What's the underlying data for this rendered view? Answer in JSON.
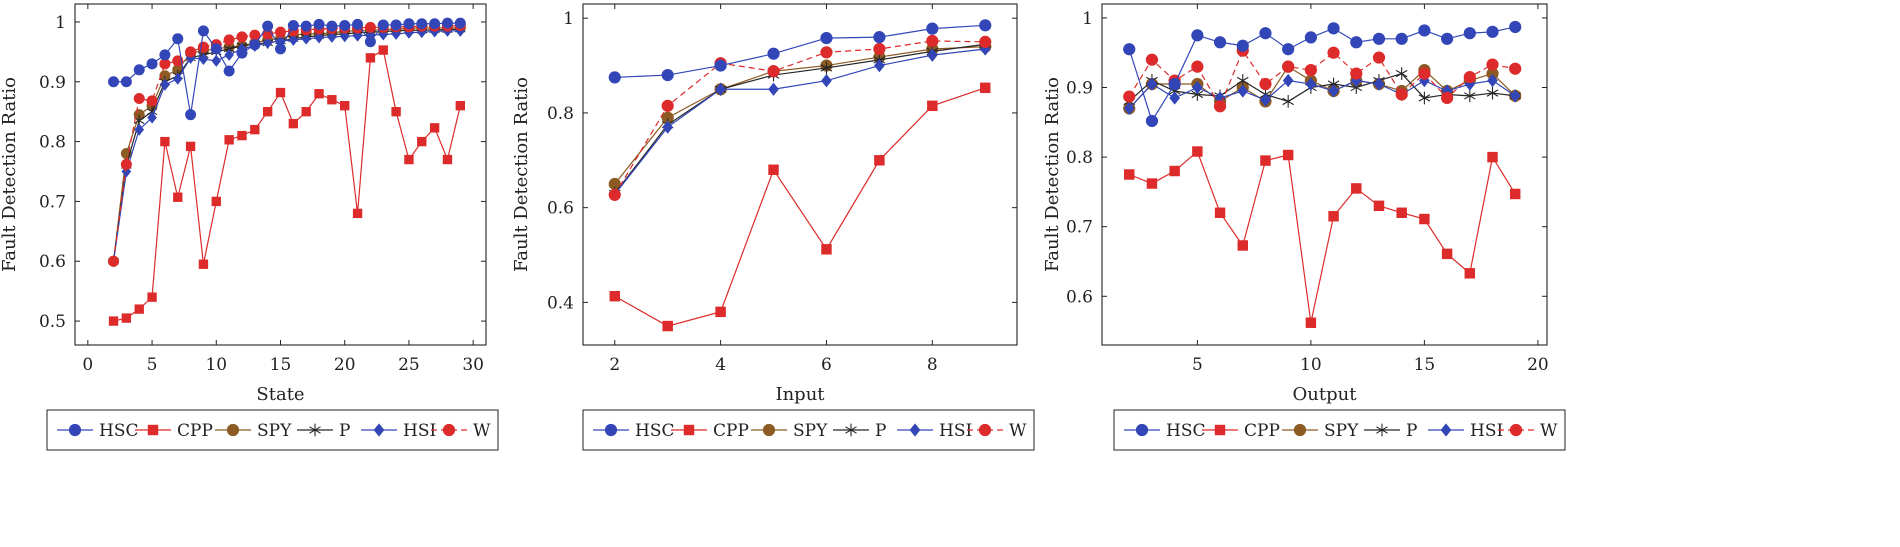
{
  "chart_data": [
    {
      "type": "line",
      "xlabel": "State",
      "ylabel": "Fault Detection Ratio",
      "xlim": [
        -1,
        31
      ],
      "ylim": [
        0.46,
        1.03
      ],
      "xticks": [
        0,
        5,
        10,
        15,
        20,
        25,
        30
      ],
      "yticks": [
        0.5,
        0.6,
        0.7,
        0.8,
        0.9,
        1
      ],
      "ytick_labels": [
        "0.5",
        "0.6",
        "0.7",
        "0.8",
        "0.9",
        "1"
      ],
      "grid": false,
      "legend": "bottom",
      "x": [
        2,
        3,
        4,
        5,
        6,
        7,
        8,
        9,
        10,
        11,
        12,
        13,
        14,
        15,
        16,
        17,
        18,
        19,
        20,
        21,
        22,
        23,
        24,
        25,
        26,
        27,
        28,
        29
      ],
      "series": [
        {
          "name": "HSC",
          "values": [
            0.9,
            0.9,
            0.92,
            0.93,
            0.945,
            0.972,
            0.845,
            0.985,
            0.955,
            0.918,
            0.948,
            0.962,
            0.993,
            0.955,
            0.994,
            0.993,
            0.996,
            0.993,
            0.994,
            0.996,
            0.967,
            0.995,
            0.995,
            0.997,
            0.997,
            0.997,
            0.998,
            0.998
          ]
        },
        {
          "name": "CPP",
          "values": [
            0.5,
            0.505,
            0.52,
            0.54,
            0.8,
            0.707,
            0.792,
            0.595,
            0.7,
            0.803,
            0.81,
            0.82,
            0.85,
            0.882,
            0.83,
            0.85,
            0.88,
            0.87,
            0.86,
            0.68,
            0.94,
            0.953,
            0.85,
            0.77,
            0.8,
            0.823,
            0.77,
            0.86
          ]
        },
        {
          "name": "SPY",
          "values": [
            0.6,
            0.78,
            0.845,
            0.86,
            0.91,
            0.92,
            0.948,
            0.952,
            0.955,
            0.958,
            0.96,
            0.965,
            0.97,
            0.972,
            0.978,
            0.98,
            0.98,
            0.982,
            0.984,
            0.986,
            0.986,
            0.987,
            0.988,
            0.989,
            0.99,
            0.99,
            0.99,
            0.99
          ]
        },
        {
          "name": "P",
          "values": [
            0.6,
            0.76,
            0.835,
            0.85,
            0.9,
            0.91,
            0.94,
            0.945,
            0.95,
            0.955,
            0.96,
            0.963,
            0.965,
            0.968,
            0.972,
            0.975,
            0.977,
            0.979,
            0.98,
            0.982,
            0.983,
            0.984,
            0.985,
            0.986,
            0.986,
            0.987,
            0.987,
            0.988
          ]
        },
        {
          "name": "HSI",
          "values": [
            0.6,
            0.75,
            0.82,
            0.84,
            0.895,
            0.905,
            0.94,
            0.938,
            0.935,
            0.945,
            0.955,
            0.96,
            0.965,
            0.968,
            0.97,
            0.972,
            0.974,
            0.975,
            0.976,
            0.977,
            0.978,
            0.979,
            0.98,
            0.982,
            0.983,
            0.984,
            0.985,
            0.985
          ]
        },
        {
          "name": "W",
          "values": [
            0.6,
            0.762,
            0.872,
            0.868,
            0.93,
            0.935,
            0.95,
            0.958,
            0.962,
            0.97,
            0.975,
            0.978,
            0.98,
            0.983,
            0.985,
            0.987,
            0.988,
            0.989,
            0.99,
            0.99,
            0.991,
            0.991,
            0.992,
            0.992,
            0.993,
            0.993,
            0.993,
            0.994
          ]
        }
      ]
    },
    {
      "type": "line",
      "xlabel": "Input",
      "ylabel": "Fault Detection Ratio",
      "xlim": [
        1.4,
        9.6
      ],
      "ylim": [
        0.31,
        1.03
      ],
      "xticks": [
        2,
        4,
        6,
        8
      ],
      "yticks": [
        0.4,
        0.6,
        0.8,
        1
      ],
      "ytick_labels": [
        "0.4",
        "0.6",
        "0.8",
        "1"
      ],
      "grid": false,
      "legend": "bottom",
      "x": [
        2,
        3,
        4,
        5,
        6,
        7,
        8,
        9
      ],
      "series": [
        {
          "name": "HSC",
          "values": [
            0.875,
            0.88,
            0.9,
            0.925,
            0.958,
            0.96,
            0.978,
            0.985
          ]
        },
        {
          "name": "CPP",
          "values": [
            0.413,
            0.35,
            0.38,
            0.68,
            0.512,
            0.7,
            0.815,
            0.853
          ]
        },
        {
          "name": "SPY",
          "values": [
            0.65,
            0.79,
            0.85,
            0.888,
            0.9,
            0.918,
            0.935,
            0.94
          ]
        },
        {
          "name": "P",
          "values": [
            0.63,
            0.775,
            0.85,
            0.88,
            0.895,
            0.912,
            0.93,
            0.945
          ]
        },
        {
          "name": "HSI",
          "values": [
            0.628,
            0.77,
            0.85,
            0.85,
            0.868,
            0.9,
            0.922,
            0.935
          ]
        },
        {
          "name": "W",
          "values": [
            0.627,
            0.815,
            0.905,
            0.888,
            0.928,
            0.935,
            0.952,
            0.95
          ]
        }
      ]
    },
    {
      "type": "line",
      "xlabel": "Output",
      "ylabel": "Fault Detection Ratio",
      "xlim": [
        0.8,
        20.4
      ],
      "ylim": [
        0.53,
        1.02
      ],
      "xticks": [
        5,
        10,
        15,
        20
      ],
      "yticks": [
        0.6,
        0.7,
        0.8,
        0.9,
        1
      ],
      "ytick_labels": [
        "0.6",
        "0.7",
        "0.8",
        "0.9",
        "1"
      ],
      "grid": false,
      "legend": "bottom",
      "x": [
        2,
        3,
        4,
        5,
        6,
        7,
        8,
        9,
        10,
        11,
        12,
        13,
        14,
        15,
        16,
        17,
        18,
        19
      ],
      "series": [
        {
          "name": "HSC",
          "values": [
            0.955,
            0.852,
            0.905,
            0.975,
            0.965,
            0.96,
            0.978,
            0.955,
            0.972,
            0.985,
            0.965,
            0.97,
            0.97,
            0.982,
            0.97,
            0.978,
            0.98,
            0.987
          ]
        },
        {
          "name": "CPP",
          "values": [
            0.775,
            0.762,
            0.78,
            0.808,
            0.72,
            0.673,
            0.795,
            0.803,
            0.562,
            0.715,
            0.755,
            0.73,
            0.72,
            0.711,
            0.661,
            0.633,
            0.8,
            0.747
          ]
        },
        {
          "name": "SPY",
          "values": [
            0.87,
            0.905,
            0.905,
            0.905,
            0.88,
            0.9,
            0.88,
            0.93,
            0.91,
            0.895,
            0.91,
            0.905,
            0.895,
            0.925,
            0.895,
            0.91,
            0.92,
            0.888
          ]
        },
        {
          "name": "P",
          "values": [
            0.88,
            0.91,
            0.895,
            0.89,
            0.888,
            0.91,
            0.89,
            0.88,
            0.9,
            0.905,
            0.9,
            0.91,
            0.92,
            0.885,
            0.89,
            0.888,
            0.892,
            0.888
          ]
        },
        {
          "name": "HSI",
          "values": [
            0.87,
            0.905,
            0.885,
            0.9,
            0.885,
            0.895,
            0.882,
            0.91,
            0.905,
            0.895,
            0.91,
            0.905,
            0.89,
            0.91,
            0.895,
            0.905,
            0.91,
            0.888
          ]
        },
        {
          "name": "W",
          "values": [
            0.887,
            0.94,
            0.91,
            0.93,
            0.873,
            0.953,
            0.905,
            0.93,
            0.925,
            0.95,
            0.92,
            0.943,
            0.89,
            0.92,
            0.885,
            0.915,
            0.933,
            0.927
          ]
        }
      ]
    }
  ],
  "legend": {
    "entries": [
      {
        "name": "HSC",
        "color": "#3346b8",
        "marker": "circle",
        "dash": false
      },
      {
        "name": "CPP",
        "color": "#dd2a2a",
        "marker": "square",
        "dash": false
      },
      {
        "name": "SPY",
        "color": "#8c5a23",
        "marker": "circle",
        "dash": false
      },
      {
        "name": "P",
        "color": "#262626",
        "marker": "star",
        "dash": false
      },
      {
        "name": "HSI",
        "color": "#3346b8",
        "marker": "diamond",
        "dash": false
      },
      {
        "name": "W",
        "color": "#dd2a2a",
        "marker": "circle",
        "dash": true
      }
    ]
  }
}
